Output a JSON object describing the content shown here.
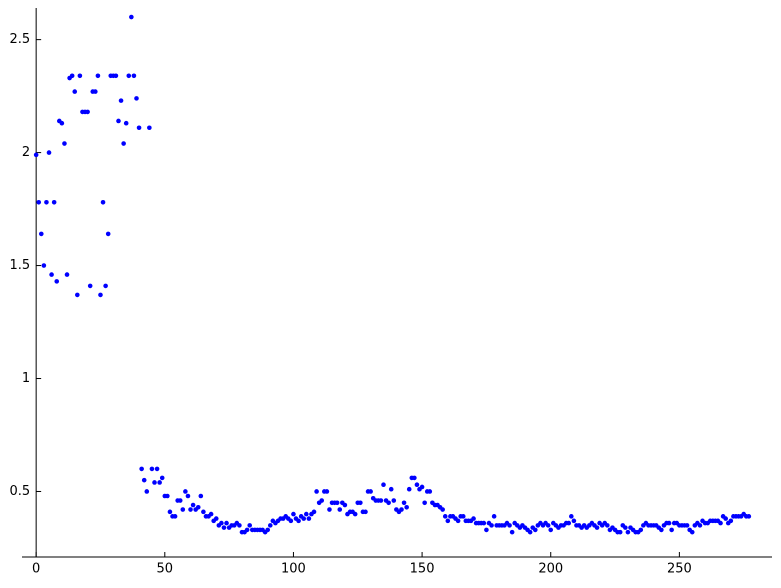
{
  "chart_data": {
    "type": "scatter",
    "color": "#0000ff",
    "xlim": [
      -5.5,
      286
    ],
    "ylim": [
      0.21,
      2.64
    ],
    "xticks": [
      0,
      50,
      100,
      150,
      200,
      250
    ],
    "yticks": [
      0.5,
      1,
      1.5,
      2,
      2.5
    ],
    "x": [
      0,
      1,
      2,
      3,
      4,
      5,
      6,
      7,
      8,
      9,
      10,
      11,
      12,
      13,
      14,
      15,
      16,
      17,
      18,
      19,
      20,
      21,
      22,
      23,
      24,
      25,
      26,
      27,
      28,
      29,
      30,
      31,
      32,
      33,
      34,
      35,
      36,
      37,
      38,
      39,
      40,
      41,
      42,
      43,
      44,
      45,
      46,
      47,
      48,
      49,
      50,
      51,
      52,
      53,
      54,
      55,
      56,
      57,
      58,
      59,
      60,
      61,
      62,
      63,
      64,
      65,
      66,
      67,
      68,
      69,
      70,
      71,
      72,
      73,
      74,
      75,
      76,
      77,
      78,
      79,
      80,
      81,
      82,
      83,
      84,
      85,
      86,
      87,
      88,
      89,
      90,
      91,
      92,
      93,
      94,
      95,
      96,
      97,
      98,
      99,
      100,
      101,
      102,
      103,
      104,
      105,
      106,
      107,
      108,
      109,
      110,
      111,
      112,
      113,
      114,
      115,
      116,
      117,
      118,
      119,
      120,
      121,
      122,
      123,
      124,
      125,
      126,
      127,
      128,
      129,
      130,
      131,
      132,
      133,
      134,
      135,
      136,
      137,
      138,
      139,
      140,
      141,
      142,
      143,
      144,
      145,
      146,
      147,
      148,
      149,
      150,
      151,
      152,
      153,
      154,
      155,
      156,
      157,
      158,
      159,
      160,
      161,
      162,
      163,
      164,
      165,
      166,
      167,
      168,
      169,
      170,
      171,
      172,
      173,
      174,
      175,
      176,
      177,
      178,
      179,
      180,
      181,
      182,
      183,
      184,
      185,
      186,
      187,
      188,
      189,
      190,
      191,
      192,
      193,
      194,
      195,
      196,
      197,
      198,
      199,
      200,
      201,
      202,
      203,
      204,
      205,
      206,
      207,
      208,
      209,
      210,
      211,
      212,
      213,
      214,
      215,
      216,
      217,
      218,
      219,
      220,
      221,
      222,
      223,
      224,
      225,
      226,
      227,
      228,
      229,
      230,
      231,
      232,
      233,
      234,
      235,
      236,
      237,
      238,
      239,
      240,
      241,
      242,
      243,
      244,
      245,
      246,
      247,
      248,
      249,
      250,
      251,
      252,
      253,
      254,
      255,
      256,
      257,
      258,
      259,
      260,
      261,
      262,
      263,
      264,
      265,
      266,
      267,
      268,
      269,
      270,
      271,
      272,
      273,
      274,
      275,
      276,
      277
    ],
    "values": [
      1.99,
      1.78,
      1.64,
      1.5,
      1.78,
      2.0,
      1.46,
      1.78,
      1.43,
      2.14,
      2.13,
      2.04,
      1.46,
      2.33,
      2.34,
      2.27,
      1.37,
      2.34,
      2.18,
      2.18,
      2.18,
      1.41,
      2.27,
      2.27,
      2.34,
      1.37,
      1.78,
      1.41,
      1.64,
      2.34,
      2.34,
      2.34,
      2.14,
      2.23,
      2.04,
      2.13,
      2.34,
      2.6,
      2.34,
      2.24,
      2.11,
      0.6,
      0.55,
      0.5,
      2.11,
      0.6,
      0.54,
      0.6,
      0.54,
      0.56,
      0.48,
      0.48,
      0.41,
      0.39,
      0.39,
      0.46,
      0.46,
      0.42,
      0.5,
      0.48,
      0.42,
      0.44,
      0.42,
      0.43,
      0.48,
      0.41,
      0.39,
      0.39,
      0.4,
      0.37,
      0.38,
      0.35,
      0.36,
      0.34,
      0.36,
      0.34,
      0.35,
      0.35,
      0.36,
      0.35,
      0.32,
      0.32,
      0.33,
      0.35,
      0.33,
      0.33,
      0.33,
      0.33,
      0.33,
      0.32,
      0.33,
      0.35,
      0.37,
      0.36,
      0.37,
      0.38,
      0.38,
      0.39,
      0.38,
      0.37,
      0.4,
      0.38,
      0.37,
      0.39,
      0.38,
      0.4,
      0.38,
      0.4,
      0.41,
      0.5,
      0.45,
      0.46,
      0.5,
      0.5,
      0.42,
      0.45,
      0.45,
      0.45,
      0.42,
      0.45,
      0.44,
      0.4,
      0.41,
      0.41,
      0.4,
      0.45,
      0.45,
      0.41,
      0.41,
      0.5,
      0.5,
      0.47,
      0.46,
      0.46,
      0.46,
      0.53,
      0.46,
      0.45,
      0.51,
      0.46,
      0.42,
      0.41,
      0.42,
      0.45,
      0.43,
      0.51,
      0.56,
      0.56,
      0.53,
      0.51,
      0.52,
      0.45,
      0.5,
      0.5,
      0.45,
      0.44,
      0.44,
      0.43,
      0.42,
      0.39,
      0.37,
      0.39,
      0.39,
      0.38,
      0.37,
      0.39,
      0.39,
      0.37,
      0.37,
      0.37,
      0.38,
      0.36,
      0.36,
      0.36,
      0.36,
      0.33,
      0.36,
      0.35,
      0.39,
      0.35,
      0.35,
      0.35,
      0.35,
      0.36,
      0.35,
      0.32,
      0.36,
      0.35,
      0.34,
      0.35,
      0.34,
      0.33,
      0.32,
      0.34,
      0.33,
      0.35,
      0.36,
      0.35,
      0.36,
      0.35,
      0.33,
      0.36,
      0.35,
      0.34,
      0.35,
      0.35,
      0.36,
      0.36,
      0.39,
      0.37,
      0.35,
      0.35,
      0.34,
      0.35,
      0.34,
      0.35,
      0.36,
      0.35,
      0.34,
      0.36,
      0.35,
      0.36,
      0.35,
      0.33,
      0.34,
      0.33,
      0.32,
      0.32,
      0.35,
      0.34,
      0.32,
      0.34,
      0.33,
      0.32,
      0.32,
      0.33,
      0.35,
      0.36,
      0.35,
      0.35,
      0.35,
      0.35,
      0.34,
      0.33,
      0.35,
      0.36,
      0.36,
      0.33,
      0.36,
      0.36,
      0.35,
      0.35,
      0.35,
      0.35,
      0.33,
      0.32,
      0.35,
      0.36,
      0.35,
      0.37,
      0.36,
      0.36,
      0.37,
      0.37,
      0.37,
      0.37,
      0.36,
      0.39,
      0.38,
      0.36,
      0.37,
      0.39,
      0.39,
      0.39,
      0.39,
      0.4,
      0.39,
      0.39
    ]
  }
}
